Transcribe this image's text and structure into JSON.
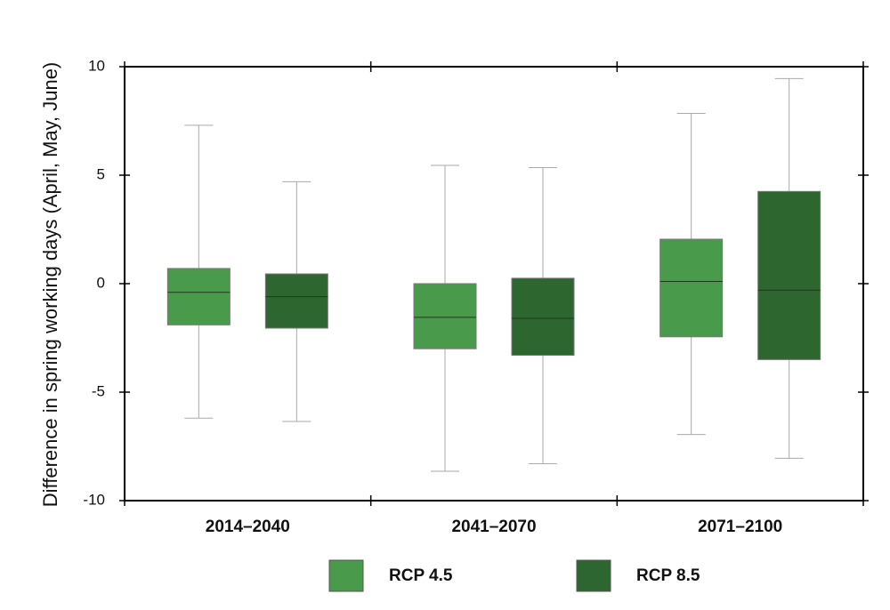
{
  "chart_data": {
    "type": "box",
    "y_label": "Difference in spring working days (April, May, June)",
    "categories": [
      "2014–2040",
      "2041–2070",
      "2071–2100"
    ],
    "series": [
      {
        "name": "RCP 4.5",
        "color": "#4a9a4c",
        "whislo": [
          -6.2,
          -8.65,
          -6.95
        ],
        "q1": [
          -1.9,
          -3.0,
          -2.45
        ],
        "median": [
          -0.4,
          -1.55,
          0.1
        ],
        "q3": [
          0.7,
          0.0,
          2.05
        ],
        "whishi": [
          7.3,
          5.45,
          7.85
        ]
      },
      {
        "name": "RCP 8.5",
        "color": "#2e6630",
        "whislo": [
          -6.35,
          -8.3,
          -8.05
        ],
        "q1": [
          -2.05,
          -3.3,
          -3.5
        ],
        "median": [
          -0.6,
          -1.6,
          -0.3
        ],
        "q3": [
          0.45,
          0.25,
          4.25
        ],
        "whishi": [
          4.7,
          5.35,
          9.45
        ]
      }
    ],
    "ylim": [
      -10,
      10
    ],
    "yticks": [
      -10,
      -5,
      0,
      5,
      10
    ],
    "legend": "bottom"
  }
}
